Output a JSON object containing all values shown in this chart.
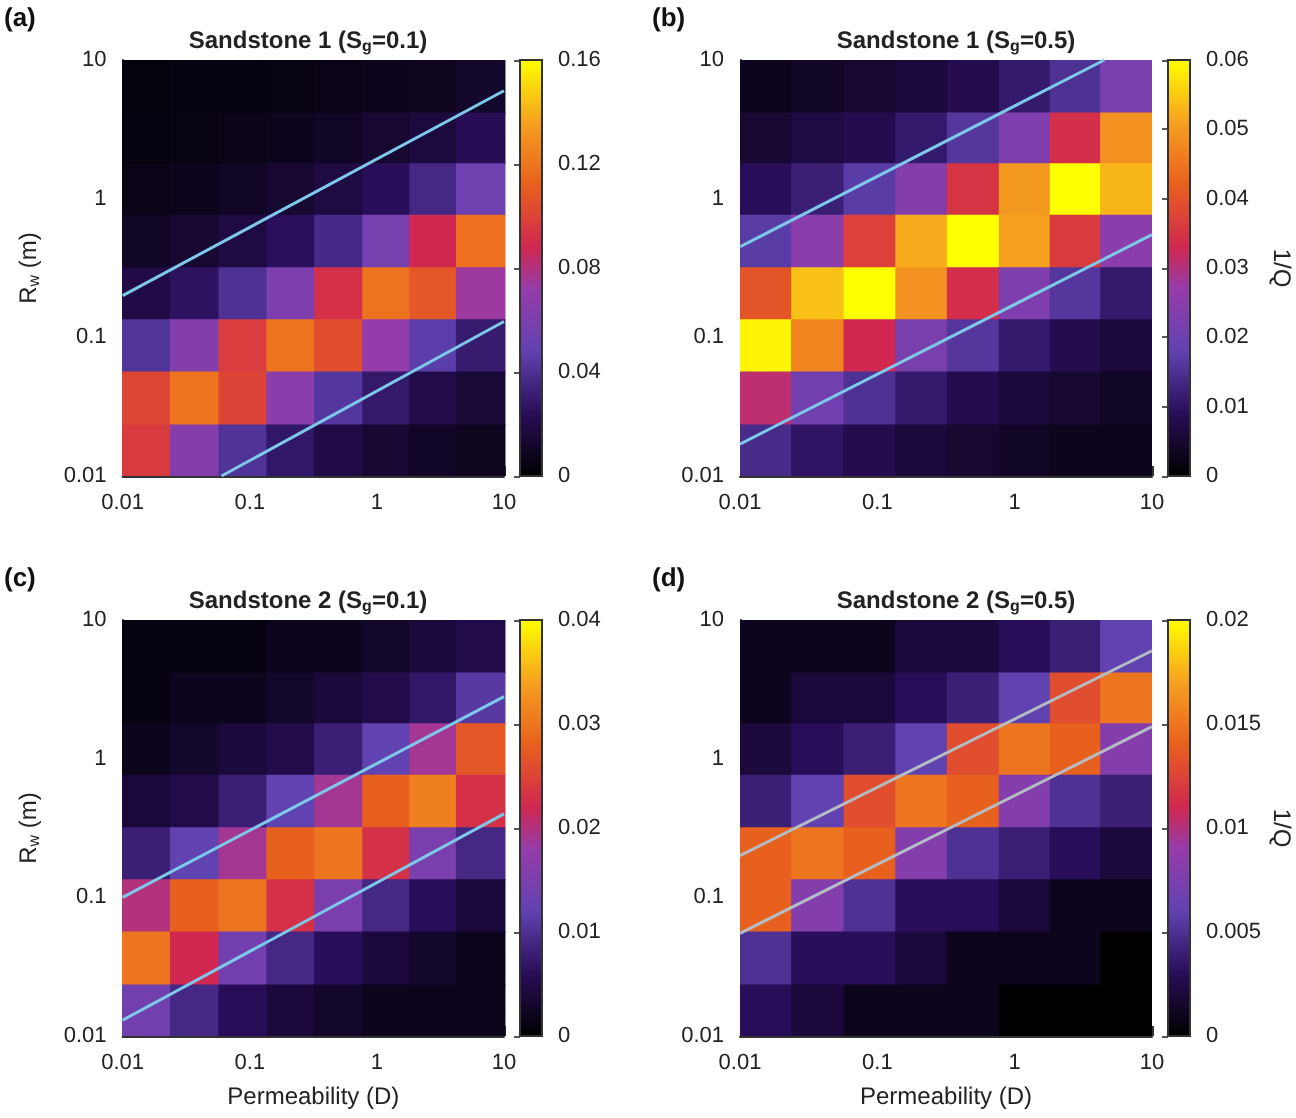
{
  "chart_data": [
    {
      "type": "heatmap",
      "title": "Sandstone 1 (S$_{g}$=0.1)",
      "ylabel": "R$_{w}$ (m)",
      "annotations": [
        "(a)"
      ],
      "log": "xy",
      "xlim": [
        0.01,
        10
      ],
      "ylim": [
        0.01,
        10
      ],
      "xticks": [
        0.01,
        0.1,
        1,
        10
      ],
      "yticks": [
        0.01,
        0.1,
        1,
        10
      ],
      "clim": [
        0,
        0.16
      ],
      "cticks": [
        0,
        0.04,
        0.08,
        0.12,
        0.16
      ],
      "x": [
        0.015,
        0.037,
        0.087,
        0.21,
        0.49,
        1.2,
        2.7,
        6.5
      ],
      "y": [
        6.5,
        2.7,
        1.2,
        0.49,
        0.21,
        0.087,
        0.037,
        0.015
      ],
      "cells": [
        [
          0.003,
          0.004,
          0.004,
          0.005,
          0.006,
          0.008,
          0.009,
          0.012
        ],
        [
          0.004,
          0.005,
          0.006,
          0.008,
          0.01,
          0.013,
          0.017,
          0.023
        ],
        [
          0.006,
          0.008,
          0.01,
          0.013,
          0.018,
          0.024,
          0.036,
          0.054
        ],
        [
          0.01,
          0.013,
          0.018,
          0.025,
          0.037,
          0.058,
          0.088,
          0.118
        ],
        [
          0.019,
          0.026,
          0.04,
          0.061,
          0.092,
          0.119,
          0.108,
          0.074
        ],
        [
          0.042,
          0.064,
          0.097,
          0.12,
          0.104,
          0.071,
          0.046,
          0.03
        ],
        [
          0.101,
          0.12,
          0.1,
          0.067,
          0.043,
          0.029,
          0.02,
          0.015
        ],
        [
          0.096,
          0.064,
          0.041,
          0.028,
          0.019,
          0.014,
          0.011,
          0.009
        ]
      ],
      "series": [
        {
          "type": "line",
          "color": "#7ec8ea",
          "x": [
            0.01,
            10
          ],
          "values": [
            0.2,
            6
          ]
        },
        {
          "type": "line",
          "color": "#7ec8ea",
          "x": [
            0.06,
            10
          ],
          "values": [
            0.01,
            0.13
          ]
        }
      ]
    },
    {
      "type": "heatmap",
      "title": "Sandstone 1 (S$_{g}$=0.5)",
      "clabel": "1/Q",
      "annotations": [
        "(b)"
      ],
      "log": "xy",
      "xlim": [
        0.01,
        10
      ],
      "ylim": [
        0.01,
        10
      ],
      "xticks": [
        0.01,
        0.1,
        1,
        10
      ],
      "yticks": [
        0.01,
        0.1,
        1,
        10
      ],
      "clim": [
        0,
        0.06
      ],
      "cticks": [
        0,
        0.01,
        0.02,
        0.03,
        0.04,
        0.05,
        0.06
      ],
      "x": [
        0.015,
        0.037,
        0.087,
        0.21,
        0.49,
        1.2,
        2.7,
        6.5
      ],
      "y": [
        6.5,
        2.7,
        1.2,
        0.49,
        0.21,
        0.087,
        0.037,
        0.015
      ],
      "cells": [
        [
          0.003,
          0.004,
          0.005,
          0.006,
          0.008,
          0.011,
          0.015,
          0.022
        ],
        [
          0.005,
          0.007,
          0.008,
          0.011,
          0.016,
          0.023,
          0.034,
          0.049
        ],
        [
          0.009,
          0.012,
          0.017,
          0.024,
          0.035,
          0.05,
          0.06,
          0.053
        ],
        [
          0.017,
          0.025,
          0.037,
          0.052,
          0.06,
          0.051,
          0.036,
          0.025
        ],
        [
          0.04,
          0.054,
          0.06,
          0.049,
          0.034,
          0.023,
          0.016,
          0.011
        ],
        [
          0.059,
          0.047,
          0.033,
          0.022,
          0.016,
          0.011,
          0.008,
          0.006
        ],
        [
          0.031,
          0.021,
          0.015,
          0.011,
          0.008,
          0.006,
          0.005,
          0.004
        ],
        [
          0.014,
          0.01,
          0.008,
          0.006,
          0.005,
          0.004,
          0.003,
          0.003
        ]
      ],
      "series": [
        {
          "type": "line",
          "color": "#7ec8ea",
          "x": [
            0.01,
            4.5
          ],
          "values": [
            0.45,
            10
          ]
        },
        {
          "type": "line",
          "color": "#7ec8ea",
          "x": [
            0.01,
            10
          ],
          "values": [
            0.017,
            0.55
          ]
        }
      ]
    },
    {
      "type": "heatmap",
      "title": "Sandstone 2 (S$_{g}$=0.1)",
      "xlabel": "Permeability (D)",
      "ylabel": "R$_{w}$ (m)",
      "annotations": [
        "(c)"
      ],
      "log": "xy",
      "xlim": [
        0.01,
        10
      ],
      "ylim": [
        0.01,
        10
      ],
      "xticks": [
        0.01,
        0.1,
        1,
        10
      ],
      "yticks": [
        0.01,
        0.1,
        1,
        10
      ],
      "clim": [
        0,
        0.04
      ],
      "cticks": [
        0,
        0.01,
        0.02,
        0.03,
        0.04
      ],
      "x": [
        0.015,
        0.037,
        0.087,
        0.21,
        0.49,
        1.2,
        2.7,
        6.5
      ],
      "y": [
        6.5,
        2.7,
        1.2,
        0.49,
        0.21,
        0.087,
        0.037,
        0.015
      ],
      "cells": [
        [
          0.001,
          0.001,
          0.001,
          0.002,
          0.002,
          0.003,
          0.004,
          0.005
        ],
        [
          0.001,
          0.002,
          0.002,
          0.003,
          0.004,
          0.005,
          0.007,
          0.011
        ],
        [
          0.002,
          0.003,
          0.004,
          0.005,
          0.008,
          0.012,
          0.019,
          0.027
        ],
        [
          0.004,
          0.005,
          0.008,
          0.012,
          0.019,
          0.028,
          0.031,
          0.023
        ],
        [
          0.008,
          0.012,
          0.019,
          0.028,
          0.03,
          0.023,
          0.015,
          0.009
        ],
        [
          0.02,
          0.028,
          0.03,
          0.023,
          0.015,
          0.009,
          0.006,
          0.004
        ],
        [
          0.03,
          0.022,
          0.014,
          0.009,
          0.006,
          0.004,
          0.003,
          0.002
        ],
        [
          0.014,
          0.009,
          0.006,
          0.004,
          0.003,
          0.002,
          0.002,
          0.002
        ]
      ],
      "series": [
        {
          "type": "line",
          "color": "#7ec8ea",
          "x": [
            0.01,
            10
          ],
          "values": [
            0.1,
            2.8
          ]
        },
        {
          "type": "line",
          "color": "#7ec8ea",
          "x": [
            0.01,
            10
          ],
          "values": [
            0.013,
            0.4
          ]
        }
      ]
    },
    {
      "type": "heatmap",
      "title": "Sandstone 2 (S$_{g}$=0.5)",
      "xlabel": "Permeability (D)",
      "clabel": "1/Q",
      "annotations": [
        "(d)"
      ],
      "log": "xy",
      "xlim": [
        0.01,
        10
      ],
      "ylim": [
        0.01,
        10
      ],
      "xticks": [
        0.01,
        0.1,
        1,
        10
      ],
      "yticks": [
        0.01,
        0.1,
        1,
        10
      ],
      "clim": [
        0,
        0.02
      ],
      "cticks": [
        0,
        0.005,
        0.01,
        0.015,
        0.02
      ],
      "x": [
        0.015,
        0.037,
        0.087,
        0.21,
        0.49,
        1.2,
        2.7,
        6.5
      ],
      "y": [
        6.5,
        2.7,
        1.2,
        0.49,
        0.21,
        0.087,
        0.037,
        0.015
      ],
      "cells": [
        [
          0.001,
          0.001,
          0.001,
          0.002,
          0.002,
          0.003,
          0.004,
          0.006
        ],
        [
          0.001,
          0.002,
          0.002,
          0.003,
          0.004,
          0.006,
          0.013,
          0.015
        ],
        [
          0.002,
          0.003,
          0.004,
          0.006,
          0.013,
          0.015,
          0.014,
          0.008
        ],
        [
          0.004,
          0.006,
          0.013,
          0.015,
          0.014,
          0.008,
          0.005,
          0.004
        ],
        [
          0.014,
          0.015,
          0.014,
          0.008,
          0.005,
          0.004,
          0.003,
          0.002
        ],
        [
          0.014,
          0.008,
          0.005,
          0.003,
          0.003,
          0.002,
          0.001,
          0.001
        ],
        [
          0.005,
          0.003,
          0.003,
          0.002,
          0.001,
          0.001,
          0.001,
          0
        ],
        [
          0.003,
          0.002,
          0.001,
          0.001,
          0.001,
          0,
          0,
          0
        ]
      ],
      "series": [
        {
          "type": "line",
          "color": "#b4bcc4",
          "x": [
            0.01,
            10
          ],
          "values": [
            0.2,
            6
          ]
        },
        {
          "type": "line",
          "color": "#b4bcc4",
          "x": [
            0.01,
            10
          ],
          "values": [
            0.055,
            1.7
          ]
        }
      ]
    }
  ]
}
